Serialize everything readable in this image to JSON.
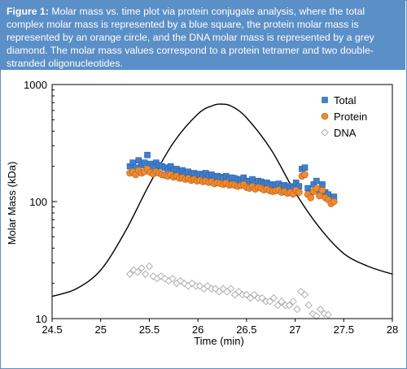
{
  "caption": {
    "label": "Figure 1:",
    "text": "Molar mass vs. time plot via protein conjugate analysis, where the total complex molar mass is represented by a blue square, the protein molar mass is represented by an orange circle, and the DNA molar mass is represented by a grey diamond. The molar mass values correspond to a protein tetramer and two double-stranded oligonucleotides."
  },
  "colors": {
    "caption_bg": "#5b8fc7",
    "total": "#3f7fd0",
    "protein": "#ef8a2f",
    "dna": "#b0b0b0",
    "curve": "#000000"
  },
  "chart_data": {
    "type": "scatter",
    "title": "",
    "xlabel": "Time (min)",
    "ylabel": "Molar Mass (kDa)",
    "xlim": [
      24.5,
      28
    ],
    "ylim": [
      10,
      1000
    ],
    "yscale": "log",
    "xticks": [
      "24.5",
      "25",
      "25.5",
      "26",
      "26.5",
      "27",
      "27.5",
      "28"
    ],
    "yticks": [
      "10",
      "100",
      "1000"
    ],
    "grid": false,
    "legend": "top-right",
    "series": [
      {
        "name": "Total",
        "marker": "square",
        "x": [
          25.3,
          25.33,
          25.36,
          25.39,
          25.42,
          25.45,
          25.48,
          25.51,
          25.54,
          25.57,
          25.6,
          25.63,
          25.66,
          25.69,
          25.72,
          25.75,
          25.78,
          25.81,
          25.84,
          25.87,
          25.9,
          25.93,
          25.96,
          25.99,
          26.02,
          26.05,
          26.08,
          26.11,
          26.14,
          26.17,
          26.2,
          26.23,
          26.26,
          26.29,
          26.32,
          26.35,
          26.38,
          26.41,
          26.44,
          26.47,
          26.5,
          26.53,
          26.56,
          26.59,
          26.62,
          26.65,
          26.68,
          26.71,
          26.74,
          26.77,
          26.8,
          26.83,
          26.86,
          26.89,
          26.92,
          26.95,
          26.98,
          27.01,
          27.04,
          27.07,
          27.1,
          27.13,
          27.16,
          27.19,
          27.22,
          27.25,
          27.28,
          27.31,
          27.34,
          27.37,
          27.4
        ],
        "y": [
          200,
          215,
          195,
          225,
          205,
          215,
          250,
          210,
          200,
          215,
          205,
          200,
          195,
          190,
          200,
          185,
          190,
          180,
          185,
          175,
          180,
          170,
          175,
          170,
          172,
          168,
          175,
          165,
          170,
          160,
          165,
          162,
          160,
          165,
          155,
          160,
          158,
          152,
          155,
          160,
          150,
          148,
          155,
          145,
          150,
          148,
          142,
          145,
          140,
          138,
          140,
          142,
          135,
          138,
          132,
          135,
          130,
          145,
          135,
          190,
          195,
          130,
          120,
          140,
          150,
          125,
          140,
          120,
          115,
          105,
          110
        ]
      },
      {
        "name": "Protein",
        "marker": "circle",
        "x": [
          25.3,
          25.33,
          25.36,
          25.39,
          25.42,
          25.45,
          25.48,
          25.51,
          25.54,
          25.57,
          25.6,
          25.63,
          25.66,
          25.69,
          25.72,
          25.75,
          25.78,
          25.81,
          25.84,
          25.87,
          25.9,
          25.93,
          25.96,
          25.99,
          26.02,
          26.05,
          26.08,
          26.11,
          26.14,
          26.17,
          26.2,
          26.23,
          26.26,
          26.29,
          26.32,
          26.35,
          26.38,
          26.41,
          26.44,
          26.47,
          26.5,
          26.53,
          26.56,
          26.59,
          26.62,
          26.65,
          26.68,
          26.71,
          26.74,
          26.77,
          26.8,
          26.83,
          26.86,
          26.89,
          26.92,
          26.95,
          26.98,
          27.01,
          27.04,
          27.07,
          27.1,
          27.13,
          27.16,
          27.19,
          27.22,
          27.25,
          27.28,
          27.31,
          27.34,
          27.37,
          27.4
        ],
        "y": [
          175,
          180,
          170,
          185,
          175,
          180,
          190,
          178,
          172,
          180,
          175,
          170,
          168,
          165,
          170,
          162,
          165,
          158,
          160,
          155,
          158,
          152,
          155,
          150,
          152,
          148,
          150,
          146,
          148,
          142,
          145,
          143,
          140,
          144,
          138,
          140,
          138,
          135,
          137,
          140,
          132,
          130,
          135,
          128,
          132,
          130,
          126,
          128,
          124,
          122,
          124,
          126,
          120,
          122,
          118,
          120,
          116,
          125,
          120,
          165,
          170,
          115,
          108,
          122,
          130,
          112,
          125,
          108,
          104,
          96,
          100
        ]
      },
      {
        "name": "DNA",
        "marker": "diamond",
        "x": [
          25.3,
          25.34,
          25.38,
          25.42,
          25.46,
          25.5,
          25.54,
          25.58,
          25.62,
          25.66,
          25.7,
          25.74,
          25.78,
          25.82,
          25.86,
          25.9,
          25.94,
          25.98,
          26.02,
          26.06,
          26.1,
          26.14,
          26.18,
          26.22,
          26.26,
          26.3,
          26.34,
          26.38,
          26.42,
          26.46,
          26.5,
          26.54,
          26.58,
          26.62,
          26.66,
          26.7,
          26.74,
          26.78,
          26.82,
          26.86,
          26.9,
          26.94,
          26.98,
          27.02,
          27.06,
          27.1,
          27.14,
          27.18,
          27.22,
          27.26,
          27.3,
          27.34
        ],
        "y": [
          24,
          26,
          25,
          27,
          24,
          28,
          23,
          22,
          23,
          22,
          21,
          22,
          20,
          21,
          20,
          19,
          20,
          19,
          19,
          18,
          19,
          18,
          18,
          17,
          18,
          17,
          18,
          16,
          17,
          16,
          16,
          15,
          16,
          15,
          15,
          14,
          14,
          15,
          13,
          14,
          13,
          13,
          14,
          12,
          17,
          16,
          13,
          11,
          10.5,
          12,
          11,
          10.8
        ]
      },
      {
        "name": "",
        "type": "line",
        "x": [
          24.5,
          24.75,
          25,
          25.25,
          25.5,
          25.75,
          26,
          26.15,
          26.25,
          26.35,
          26.5,
          26.75,
          27,
          27.25,
          27.5,
          27.75,
          28
        ],
        "y": [
          15.5,
          18,
          26,
          55,
          140,
          320,
          560,
          660,
          680,
          650,
          520,
          280,
          120,
          60,
          36,
          28,
          24
        ]
      }
    ]
  }
}
